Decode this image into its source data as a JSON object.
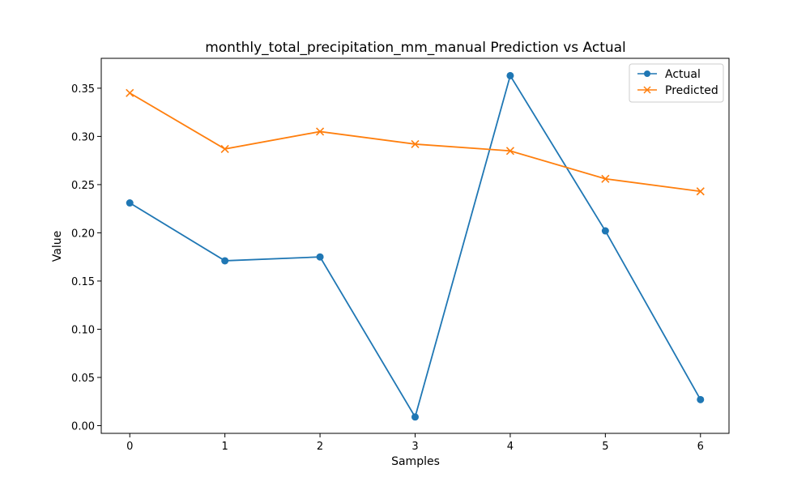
{
  "chart_data": {
    "type": "line",
    "title": "monthly_total_precipitation_mm_manual Prediction vs Actual",
    "xlabel": "Samples",
    "ylabel": "Value",
    "x": [
      0,
      1,
      2,
      3,
      4,
      5,
      6
    ],
    "xlim": [
      -0.3,
      6.3
    ],
    "ylim": [
      -0.008,
      0.381
    ],
    "xticks": [
      0,
      1,
      2,
      3,
      4,
      5,
      6
    ],
    "yticks": [
      0.0,
      0.05,
      0.1,
      0.15,
      0.2,
      0.25,
      0.3,
      0.35
    ],
    "ytick_labels": [
      "0.00",
      "0.05",
      "0.10",
      "0.15",
      "0.20",
      "0.25",
      "0.30",
      "0.35"
    ],
    "grid": false,
    "legend_position": "upper right",
    "series": [
      {
        "name": "Actual",
        "color": "#1f77b4",
        "marker": "circle",
        "values": [
          0.231,
          0.171,
          0.175,
          0.009,
          0.363,
          0.202,
          0.027
        ]
      },
      {
        "name": "Predicted",
        "color": "#ff7f0e",
        "marker": "x",
        "values": [
          0.345,
          0.287,
          0.305,
          0.292,
          0.285,
          0.256,
          0.243
        ]
      }
    ]
  }
}
